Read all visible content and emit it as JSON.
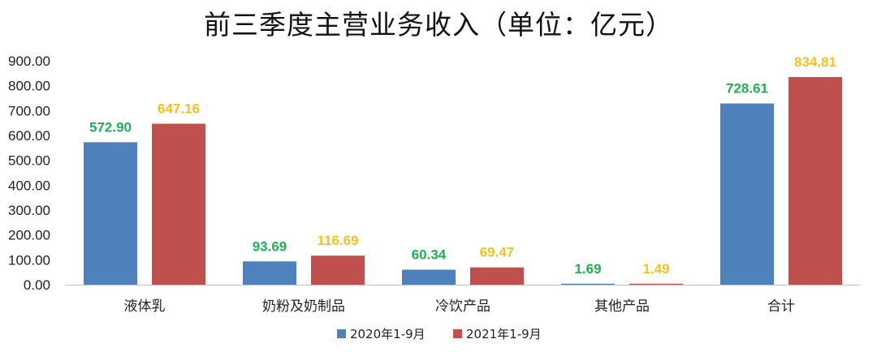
{
  "chart_data": {
    "type": "bar",
    "title": "前三季度主营业务收入（单位：亿元）",
    "categories": [
      "液体乳",
      "奶粉及奶制品",
      "冷饮产品",
      "其他产品",
      "合计"
    ],
    "series": [
      {
        "name": "2020年1-9月",
        "values": [
          572.9,
          93.69,
          60.34,
          1.69,
          728.61
        ],
        "labels": [
          "572.90",
          "93.69",
          "60.34",
          "1.69",
          "728.61"
        ],
        "color": "#4f81bd",
        "label_color": "#1fb054"
      },
      {
        "name": "2021年1-9月",
        "values": [
          647.16,
          116.69,
          69.47,
          1.49,
          834.81
        ],
        "labels": [
          "647.16",
          "116.69",
          "69.47",
          "1.49",
          "834.81"
        ],
        "color": "#c0504d",
        "label_color": "#f5c21b"
      }
    ],
    "ylim": [
      0,
      900
    ],
    "yticks": [
      "0.00",
      "100.00",
      "200.00",
      "300.00",
      "400.00",
      "500.00",
      "600.00",
      "700.00",
      "800.00",
      "900.00"
    ],
    "grid": false,
    "legend": "bottom"
  }
}
